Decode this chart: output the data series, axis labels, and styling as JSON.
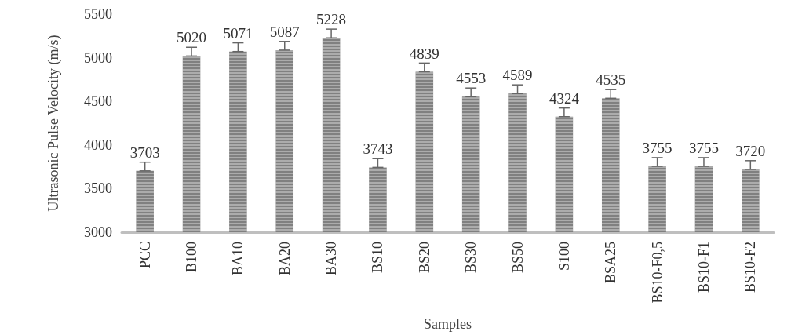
{
  "chart_data": {
    "type": "bar",
    "xlabel": "Samples",
    "ylabel": "Ultrasonic Pulse Velocity (m/s)",
    "categories": [
      "PCC",
      "B100",
      "BA10",
      "BA20",
      "BA30",
      "BS10",
      "BS20",
      "BS30",
      "BS50",
      "S100",
      "BSA25",
      "BS10-F0,5",
      "BS10-F1",
      "BS10-F2"
    ],
    "values": [
      3703,
      5020,
      5071,
      5087,
      5228,
      3743,
      4839,
      4553,
      4589,
      4324,
      4535,
      3755,
      3755,
      3720
    ],
    "errors": [
      [
        3703,
        3803
      ],
      [
        5020,
        5120
      ],
      [
        5071,
        5171
      ],
      [
        5087,
        5187
      ],
      [
        5228,
        5328
      ],
      [
        3743,
        3843
      ],
      [
        4839,
        4939
      ],
      [
        4553,
        4653
      ],
      [
        4589,
        4689
      ],
      [
        4324,
        4424
      ],
      [
        4535,
        4635
      ],
      [
        3755,
        3855
      ],
      [
        3755,
        3855
      ],
      [
        3720,
        3820
      ]
    ],
    "color": "#808080",
    "ylim": [
      3000,
      5500
    ],
    "yticks": [
      3000,
      3500,
      4000,
      4500,
      5000,
      5500
    ],
    "grid": false,
    "data_labels": true
  }
}
